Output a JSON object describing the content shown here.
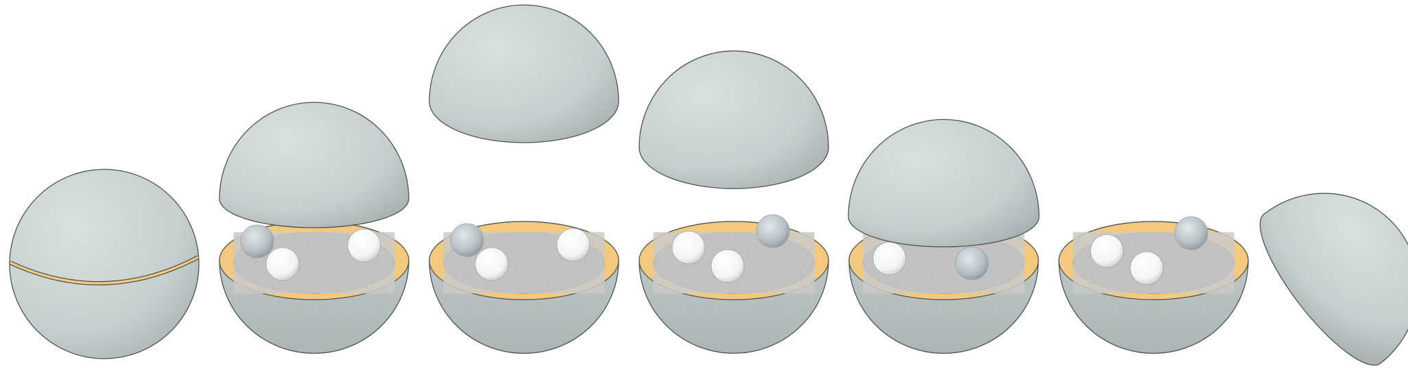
{
  "diagram": {
    "panels": [
      {
        "id": "closed-sphere",
        "state": "closed",
        "balls": []
      },
      {
        "id": "panel-2",
        "state": "lid-lifted",
        "balls": [
          "grey",
          "white",
          "white"
        ]
      },
      {
        "id": "panel-3",
        "state": "lid-high",
        "balls": [
          "grey",
          "white",
          "white"
        ]
      },
      {
        "id": "panel-4",
        "state": "lid-high",
        "balls": [
          "white",
          "white",
          "grey"
        ]
      },
      {
        "id": "panel-5",
        "state": "lid-lowering",
        "balls": [
          "white",
          "grey"
        ]
      },
      {
        "id": "panel-6",
        "state": "lid-tilted-aside",
        "balls": [
          "white",
          "white",
          "grey"
        ]
      }
    ]
  },
  "colors": {
    "shell": "#c9d3d2",
    "shell_outline": "#4a4f4f",
    "rim": "#f2c97e",
    "granular_fill": "#8f8f8f",
    "white_ball": "#ffffff",
    "grey_ball": "#b9c2c8"
  }
}
